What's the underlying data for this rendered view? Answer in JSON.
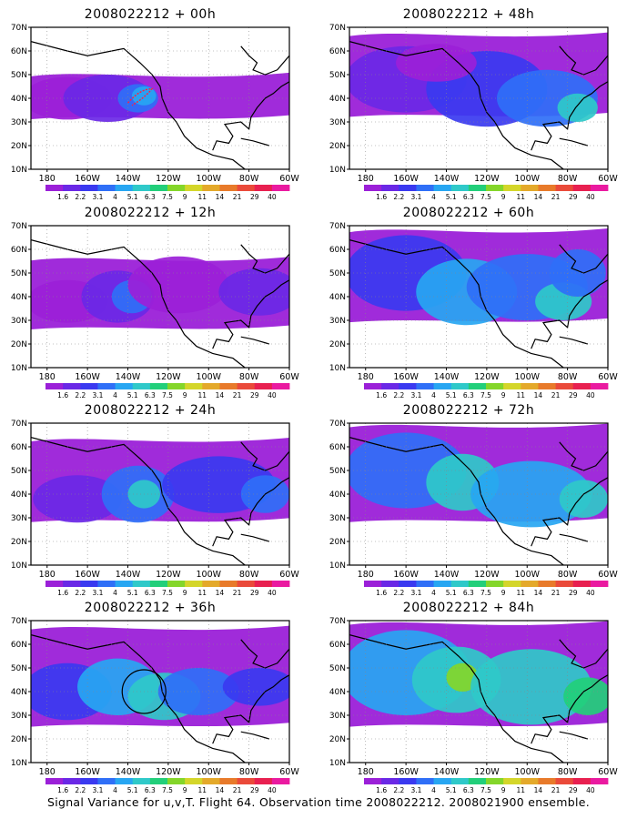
{
  "figure": {
    "caption": "Signal Variance for u,v,T. Flight 64. Observation time 2008022212. 2008021900 ensemble."
  },
  "axes": {
    "lon_labels": [
      "180",
      "160W",
      "140W",
      "120W",
      "100W",
      "80W",
      "60W"
    ],
    "lat_labels": [
      "70N",
      "60N",
      "50N",
      "40N",
      "30N",
      "20N",
      "10N"
    ]
  },
  "colorbar": {
    "labels": [
      "1.6",
      "2.2",
      "3.1",
      "4",
      "5.1",
      "6.3",
      "7.5",
      "9",
      "11",
      "14",
      "21",
      "29",
      "40"
    ],
    "colors": [
      "#9b20d8",
      "#6a28e6",
      "#3a39f0",
      "#2f6ff7",
      "#27a6f2",
      "#2fc9c9",
      "#22cf7a",
      "#84d62a",
      "#d4d62a",
      "#e4a92a",
      "#e87a2a",
      "#ea4a3a",
      "#e82050",
      "#ea1aa0"
    ]
  },
  "panels": [
    {
      "title": "2008022212 + 00h",
      "lead_hours": 0
    },
    {
      "title": "2008022212 + 48h",
      "lead_hours": 48
    },
    {
      "title": "2008022212 + 12h",
      "lead_hours": 12
    },
    {
      "title": "2008022212 + 60h",
      "lead_hours": 60
    },
    {
      "title": "2008022212 + 24h",
      "lead_hours": 24
    },
    {
      "title": "2008022212 + 72h",
      "lead_hours": 72
    },
    {
      "title": "2008022212 + 36h",
      "lead_hours": 36
    },
    {
      "title": "2008022212 + 84h",
      "lead_hours": 84
    }
  ]
}
